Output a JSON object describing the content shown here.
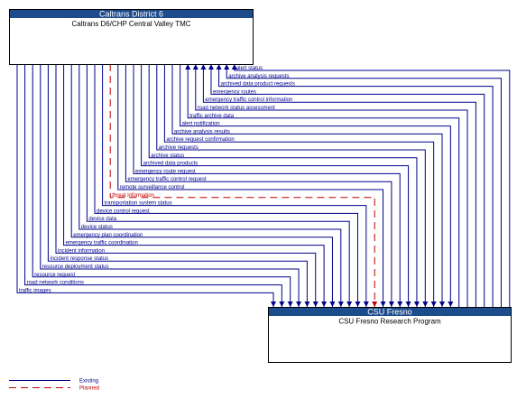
{
  "nodes": {
    "caltrans": {
      "group": "Caltrans District 6",
      "name": "Caltrans D6/CHP Central Valley TMC"
    },
    "csu": {
      "group": "CSU Fresno",
      "name": "CSU Fresno Research Program"
    }
  },
  "colors": {
    "header": "#1d4c8c",
    "existing": "#00008b",
    "planned": "#c00000"
  },
  "flows": [
    {
      "label": "alert status",
      "direction": "to-top",
      "status": "existing"
    },
    {
      "label": "archive analysis requests",
      "direction": "to-top",
      "status": "existing"
    },
    {
      "label": "archived data product requests",
      "direction": "to-top",
      "status": "existing"
    },
    {
      "label": "emergency routes",
      "direction": "to-top",
      "status": "existing"
    },
    {
      "label": "emergency traffic control information",
      "direction": "to-top",
      "status": "existing"
    },
    {
      "label": "road network status assessment",
      "direction": "to-top",
      "status": "existing"
    },
    {
      "label": "traffic archive data",
      "direction": "to-top",
      "status": "existing"
    },
    {
      "label": "alert notification",
      "direction": "to-bottom",
      "status": "existing"
    },
    {
      "label": "archive analysis results",
      "direction": "to-bottom",
      "status": "existing"
    },
    {
      "label": "archive request confirmation",
      "direction": "to-bottom",
      "status": "existing"
    },
    {
      "label": "archive requests",
      "direction": "to-bottom",
      "status": "existing"
    },
    {
      "label": "archive status",
      "direction": "to-bottom",
      "status": "existing"
    },
    {
      "label": "archived data products",
      "direction": "to-bottom",
      "status": "existing"
    },
    {
      "label": "emergency route request",
      "direction": "to-bottom",
      "status": "existing"
    },
    {
      "label": "emergency traffic control request",
      "direction": "to-bottom",
      "status": "existing"
    },
    {
      "label": "remote surveillance control",
      "direction": "to-bottom",
      "status": "existing"
    },
    {
      "label": "threat information",
      "direction": "to-bottom",
      "status": "planned"
    },
    {
      "label": "transportation system status",
      "direction": "to-bottom",
      "status": "existing"
    },
    {
      "label": "device control request",
      "direction": "to-bottom",
      "status": "existing"
    },
    {
      "label": "device data",
      "direction": "to-bottom",
      "status": "existing"
    },
    {
      "label": "device status",
      "direction": "to-bottom",
      "status": "existing"
    },
    {
      "label": "emergency plan coordination",
      "direction": "to-bottom",
      "status": "existing"
    },
    {
      "label": "emergency traffic coordination",
      "direction": "to-bottom",
      "status": "existing"
    },
    {
      "label": "incident information",
      "direction": "to-bottom",
      "status": "existing"
    },
    {
      "label": "incident response status",
      "direction": "to-bottom",
      "status": "existing"
    },
    {
      "label": "resource deployment status",
      "direction": "to-bottom",
      "status": "existing"
    },
    {
      "label": "resource request",
      "direction": "to-bottom",
      "status": "existing"
    },
    {
      "label": "road network conditions",
      "direction": "to-bottom",
      "status": "existing"
    },
    {
      "label": "traffic images",
      "direction": "to-bottom",
      "status": "existing"
    }
  ],
  "legend": {
    "existing": "Existing",
    "planned": "Planned"
  }
}
